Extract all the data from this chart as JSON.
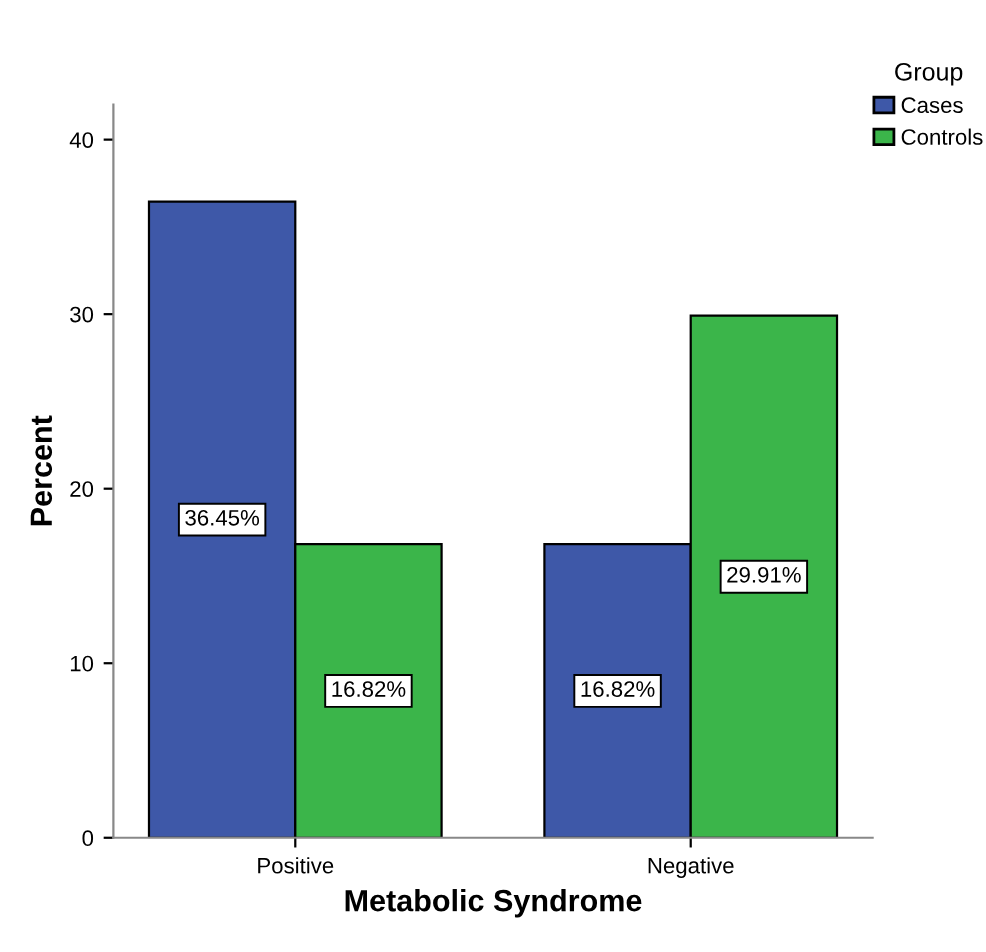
{
  "chart_data": {
    "type": "bar",
    "xlabel": "Metabolic Syndrome",
    "ylabel": "Percent",
    "legend_title": "Group",
    "categories": [
      "Positive",
      "Negative"
    ],
    "series": [
      {
        "name": "Cases",
        "color": "#3e58a8",
        "values": [
          36.45,
          16.82
        ],
        "value_labels": [
          "36.45%",
          "16.82%"
        ]
      },
      {
        "name": "Controls",
        "color": "#3bb54a",
        "values": [
          16.82,
          29.91
        ],
        "value_labels": [
          "16.82%",
          "29.91%"
        ]
      }
    ],
    "ylim": [
      0,
      42
    ],
    "yticks": [
      0,
      10,
      20,
      30,
      40
    ],
    "grid": false,
    "legend": "top right"
  }
}
